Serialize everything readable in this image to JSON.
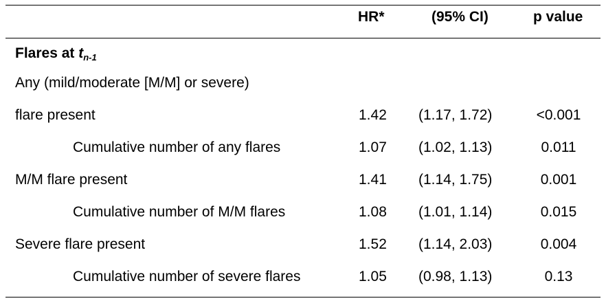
{
  "header": {
    "hr": "HR*",
    "ci": "(95% CI)",
    "p": "p value"
  },
  "section": {
    "prefix": "Flares at ",
    "t": "t",
    "sub": "n-1"
  },
  "rows": [
    {
      "label": "Any (mild/moderate [M/M] or severe)",
      "hr": "",
      "ci": "",
      "p": ""
    },
    {
      "label": "flare present",
      "hr": "1.42",
      "ci": "(1.17, 1.72)",
      "p": "<0.001"
    },
    {
      "label": "Cumulative number of any flares",
      "hr": "1.07",
      "ci": "(1.02, 1.13)",
      "p": "0.011"
    },
    {
      "label": "M/M flare present",
      "hr": "1.41",
      "ci": "(1.14, 1.75)",
      "p": "0.001"
    },
    {
      "label": "Cumulative number of M/M flares",
      "hr": "1.08",
      "ci": "(1.01, 1.14)",
      "p": "0.015"
    },
    {
      "label": "Severe flare present",
      "hr": "1.52",
      "ci": "(1.14, 2.03)",
      "p": "0.004"
    },
    {
      "label": "Cumulative number of severe flares",
      "hr": "1.05",
      "ci": "(0.98, 1.13)",
      "p": "0.13"
    }
  ]
}
